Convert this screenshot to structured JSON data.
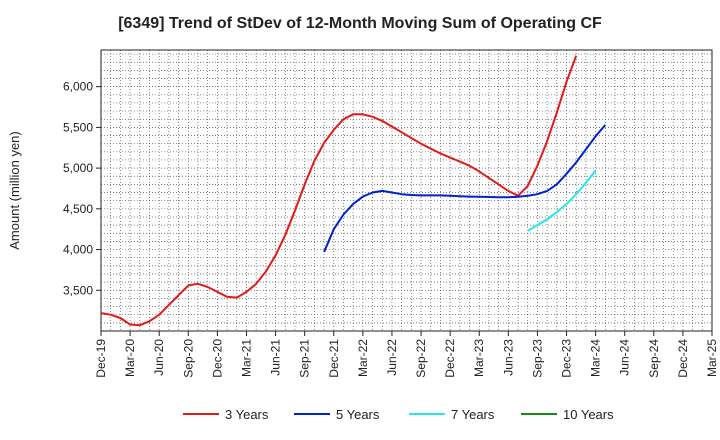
{
  "chart_data": {
    "type": "line",
    "title": "[6349]  Trend of StDev of 12-Month Moving Sum of Operating CF",
    "ylabel": "Amount (million yen)",
    "xlabel": "",
    "ylim": [
      3000,
      6450
    ],
    "yticks": [
      3500,
      4000,
      4500,
      5000,
      5500,
      6000
    ],
    "ytick_labels": [
      "3,500",
      "4,000",
      "4,500",
      "5,000",
      "5,500",
      "6,000"
    ],
    "x_tick_labels": [
      "Dec-19",
      "Mar-20",
      "Jun-20",
      "Sep-20",
      "Dec-20",
      "Mar-21",
      "Jun-21",
      "Sep-21",
      "Dec-21",
      "Mar-22",
      "Jun-22",
      "Sep-22",
      "Dec-22",
      "Mar-23",
      "Jun-23",
      "Sep-23",
      "Dec-23",
      "Mar-24",
      "Jun-24",
      "Sep-24",
      "Dec-24",
      "Mar-25"
    ],
    "grid": true,
    "legend_position": "bottom",
    "series": [
      {
        "name": "3 Years",
        "color": "#e31a1c",
        "start": "Dec-19",
        "values": [
          3220,
          3200,
          3160,
          3080,
          3070,
          3120,
          3200,
          3320,
          3440,
          3560,
          3580,
          3540,
          3480,
          3420,
          3410,
          3480,
          3580,
          3730,
          3930,
          4180,
          4480,
          4800,
          5090,
          5310,
          5470,
          5600,
          5660,
          5660,
          5630,
          5580,
          5510,
          5440,
          5370,
          5300,
          5240,
          5180,
          5130,
          5080,
          5030,
          4960,
          4880,
          4800,
          4720,
          4660,
          4780,
          5030,
          5330,
          5680,
          6060,
          6380
        ]
      },
      {
        "name": "5 Years",
        "color": "#0022cc",
        "start": "Nov-21",
        "values": [
          3970,
          4250,
          4430,
          4560,
          4650,
          4700,
          4720,
          4700,
          4680,
          4670,
          4665,
          4665,
          4665,
          4660,
          4655,
          4650,
          4648,
          4645,
          4643,
          4643,
          4648,
          4660,
          4680,
          4720,
          4800,
          4930,
          5070,
          5230,
          5390,
          5530
        ]
      },
      {
        "name": "7 Years",
        "color": "#22e6f0",
        "start": "Aug-23",
        "values": [
          4230,
          4300,
          4370,
          4460,
          4560,
          4680,
          4820,
          4970
        ]
      },
      {
        "name": "10 Years",
        "color": "#1a8a1a",
        "start": "",
        "values": []
      }
    ]
  }
}
